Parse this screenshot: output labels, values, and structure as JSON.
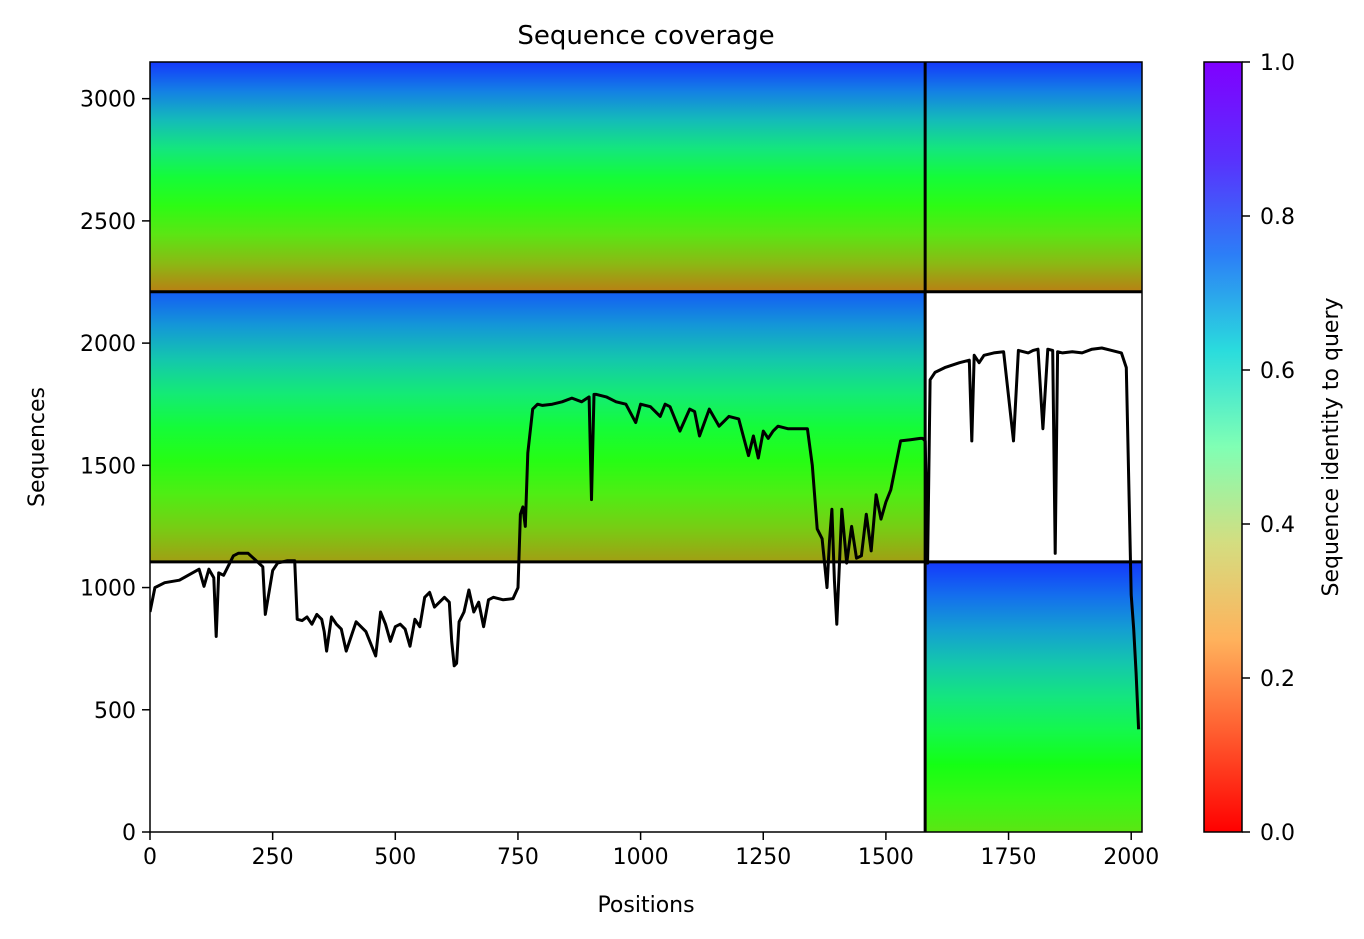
{
  "chart_data": {
    "type": "heatmap",
    "title": "Sequence coverage",
    "xlabel": "Positions",
    "ylabel": "Sequences",
    "xlim": [
      0,
      2022
    ],
    "ylim": [
      0,
      3150
    ],
    "xticks": [
      0,
      250,
      500,
      750,
      1000,
      1250,
      1500,
      1750,
      2000
    ],
    "yticks": [
      0,
      500,
      1000,
      1500,
      2000,
      2500,
      3000
    ],
    "colorbar": {
      "label": "Sequence identity to query",
      "range": [
        0,
        1
      ],
      "ticks": [
        0.0,
        0.2,
        0.4,
        0.6,
        0.8,
        1.0
      ],
      "colormap": "rainbow_r"
    },
    "chain_boundaries": {
      "x": [
        1580
      ],
      "y": [
        1105,
        2210
      ]
    },
    "coverage_blocks": [
      {
        "x_range": [
          0,
          1580
        ],
        "y_range": [
          2210,
          3150
        ],
        "identity_top": 0.95,
        "identity_bottom": 0.15
      },
      {
        "x_range": [
          1580,
          2022
        ],
        "y_range": [
          2210,
          3150
        ],
        "identity_top": 0.95,
        "identity_bottom": 0.15
      },
      {
        "x_range": [
          0,
          1580
        ],
        "y_range": [
          1105,
          2210
        ],
        "identity_top": 0.9,
        "identity_bottom": 0.2
      },
      {
        "x_range": [
          1580,
          2022
        ],
        "y_range": [
          0,
          1105
        ],
        "identity_top": 0.95,
        "identity_bottom": 0.35
      }
    ],
    "coverage_line": {
      "x": [
        0,
        10,
        30,
        60,
        100,
        110,
        120,
        130,
        135,
        140,
        150,
        170,
        180,
        200,
        230,
        235,
        250,
        260,
        280,
        295,
        300,
        310,
        320,
        330,
        340,
        350,
        355,
        360,
        370,
        380,
        390,
        400,
        420,
        440,
        460,
        470,
        480,
        490,
        500,
        510,
        520,
        530,
        540,
        550,
        560,
        570,
        580,
        600,
        610,
        615,
        620,
        625,
        630,
        640,
        650,
        660,
        670,
        680,
        690,
        700,
        720,
        740,
        750,
        755,
        760,
        765,
        770,
        780,
        790,
        800,
        820,
        840,
        860,
        880,
        895,
        900,
        905,
        910,
        930,
        950,
        970,
        990,
        1000,
        1020,
        1040,
        1050,
        1060,
        1080,
        1100,
        1110,
        1120,
        1140,
        1160,
        1180,
        1200,
        1220,
        1230,
        1240,
        1250,
        1260,
        1270,
        1280,
        1300,
        1320,
        1340,
        1350,
        1360,
        1370,
        1380,
        1385,
        1390,
        1395,
        1400,
        1410,
        1420,
        1430,
        1440,
        1450,
        1460,
        1470,
        1480,
        1490,
        1500,
        1510,
        1530,
        1550,
        1570,
        1575,
        1580,
        1585,
        1590,
        1600,
        1620,
        1650,
        1670,
        1675,
        1680,
        1690,
        1700,
        1720,
        1740,
        1760,
        1770,
        1780,
        1790,
        1800,
        1810,
        1820,
        1830,
        1840,
        1845,
        1850,
        1860,
        1880,
        1900,
        1920,
        1940,
        1960,
        1980,
        1990,
        2000,
        2005,
        2010,
        2015,
        2022
      ],
      "y": [
        900,
        1000,
        1020,
        1030,
        1075,
        1005,
        1075,
        1040,
        800,
        1060,
        1050,
        1130,
        1140,
        1140,
        1085,
        890,
        1070,
        1100,
        1110,
        1110,
        870,
        865,
        880,
        850,
        890,
        870,
        820,
        740,
        880,
        850,
        830,
        740,
        860,
        820,
        720,
        900,
        850,
        780,
        840,
        850,
        830,
        760,
        870,
        840,
        960,
        980,
        920,
        960,
        940,
        780,
        680,
        690,
        860,
        900,
        990,
        900,
        940,
        840,
        950,
        960,
        950,
        955,
        1000,
        1300,
        1330,
        1250,
        1550,
        1730,
        1750,
        1745,
        1750,
        1760,
        1775,
        1760,
        1780,
        1360,
        1790,
        1790,
        1780,
        1760,
        1750,
        1675,
        1750,
        1740,
        1700,
        1750,
        1740,
        1640,
        1730,
        1720,
        1620,
        1730,
        1660,
        1700,
        1690,
        1540,
        1620,
        1530,
        1640,
        1610,
        1640,
        1660,
        1650,
        1650,
        1650,
        1500,
        1240,
        1200,
        1000,
        1190,
        1320,
        1030,
        850,
        1320,
        1100,
        1250,
        1120,
        1130,
        1300,
        1150,
        1380,
        1280,
        1350,
        1400,
        1600,
        1605,
        1610,
        1610,
        1600,
        1100,
        1850,
        1880,
        1900,
        1920,
        1930,
        1600,
        1950,
        1920,
        1950,
        1960,
        1965,
        1600,
        1970,
        1965,
        1960,
        1970,
        1975,
        1650,
        1975,
        1970,
        1140,
        1965,
        1960,
        1965,
        1960,
        1975,
        1980,
        1970,
        1960,
        1900,
        970,
        830,
        650,
        420
      ]
    }
  }
}
